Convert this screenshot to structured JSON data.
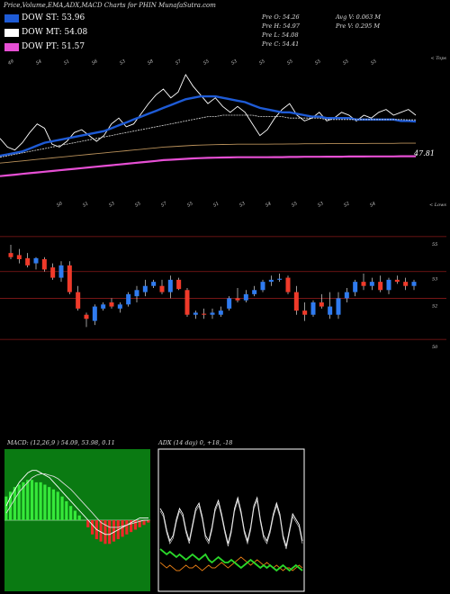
{
  "header": {
    "title": "Price,Volume,EMA,ADX,MACD Charts for PHIN  MunafaSutra.com"
  },
  "legend": [
    {
      "label": "DOW ST: 53.96",
      "color": "#1e5bd6"
    },
    {
      "label": "DOW MT: 54.08",
      "color": "#ffffff"
    },
    {
      "label": "DOW PT: 51.57",
      "color": "#e64fd4"
    }
  ],
  "info": {
    "prev_open": "Pre   O: 54.26",
    "prev_high": "Pre   H: 54.97",
    "prev_low": "Pre   L: 54.08",
    "prev_close": "Pre   C: 54.41",
    "avg_volume": "Avg V: 0.063 M",
    "prev_volume": "Pre   V: 0.295 M"
  },
  "panel1": {
    "right_label": "< Tops",
    "last_value": "47.81",
    "tops": [
      "49",
      "54",
      "51",
      "56",
      "53",
      "58",
      "57",
      "55",
      "53",
      "55",
      "55",
      "55",
      "55",
      "55"
    ],
    "lows": [
      "50",
      "51",
      "53",
      "55",
      "57",
      "55",
      "51",
      "53",
      "54",
      "55",
      "53",
      "52",
      "54"
    ]
  },
  "panel2": {
    "right_label": "< Lows"
  },
  "chart_data": [
    {
      "type": "line",
      "title": "Price,Volume,EMA,ADX,MACD Charts for PHIN",
      "series": [
        {
          "name": "Close",
          "color": "#ffffff",
          "values": [
            52.8,
            52.2,
            52.0,
            52.5,
            53.2,
            53.8,
            53.5,
            52.4,
            52.2,
            52.6,
            53.2,
            53.4,
            53.0,
            52.6,
            53.0,
            53.8,
            54.2,
            53.6,
            53.8,
            54.5,
            55.2,
            55.8,
            56.2,
            55.6,
            56.0,
            57.2,
            56.4,
            55.8,
            55.2,
            55.6,
            55.0,
            54.6,
            55.0,
            54.6,
            53.8,
            53.0,
            53.4,
            54.2,
            54.8,
            55.2,
            54.4,
            54.0,
            54.2,
            54.6,
            54.0,
            54.2,
            54.6,
            54.4,
            54.0,
            54.4,
            54.2,
            54.6,
            54.8,
            54.4,
            54.6,
            54.8,
            54.4
          ]
        },
        {
          "name": "DOW ST",
          "color": "#1e5bd6",
          "values": [
            51.6,
            51.7,
            51.8,
            51.9,
            52.1,
            52.3,
            52.5,
            52.6,
            52.7,
            52.8,
            52.9,
            53.0,
            53.1,
            53.2,
            53.3,
            53.5,
            53.7,
            53.9,
            54.1,
            54.3,
            54.5,
            54.7,
            54.9,
            55.1,
            55.3,
            55.5,
            55.6,
            55.7,
            55.7,
            55.7,
            55.6,
            55.5,
            55.4,
            55.3,
            55.1,
            54.9,
            54.8,
            54.7,
            54.6,
            54.6,
            54.5,
            54.4,
            54.3,
            54.3,
            54.2,
            54.2,
            54.2,
            54.2,
            54.1,
            54.1,
            54.1,
            54.1,
            54.1,
            54.1,
            54.0,
            54.0,
            53.96
          ]
        },
        {
          "name": "DOW MT",
          "color": "#ffffff",
          "values": [
            51.5,
            51.6,
            51.7,
            51.8,
            51.9,
            52.0,
            52.1,
            52.2,
            52.3,
            52.4,
            52.5,
            52.6,
            52.7,
            52.8,
            52.9,
            53.0,
            53.1,
            53.2,
            53.3,
            53.4,
            53.5,
            53.6,
            53.7,
            53.8,
            53.9,
            54.0,
            54.1,
            54.2,
            54.3,
            54.3,
            54.4,
            54.4,
            54.4,
            54.4,
            54.4,
            54.3,
            54.3,
            54.3,
            54.3,
            54.2,
            54.2,
            54.2,
            54.2,
            54.2,
            54.1,
            54.1,
            54.1,
            54.1,
            54.1,
            54.1,
            54.1,
            54.1,
            54.1,
            54.1,
            54.1,
            54.08,
            54.08
          ]
        },
        {
          "name": "DOW PT",
          "color": "#e64fd4",
          "values": [
            50.2,
            50.25,
            50.3,
            50.35,
            50.4,
            50.45,
            50.5,
            50.55,
            50.6,
            50.65,
            50.7,
            50.75,
            50.8,
            50.85,
            50.9,
            50.95,
            51.0,
            51.05,
            51.1,
            51.15,
            51.2,
            51.25,
            51.3,
            51.33,
            51.36,
            51.39,
            51.42,
            51.44,
            51.46,
            51.47,
            51.48,
            51.49,
            51.5,
            51.5,
            51.5,
            51.5,
            51.5,
            51.51,
            51.51,
            51.52,
            51.52,
            51.53,
            51.53,
            51.53,
            51.54,
            51.54,
            51.54,
            51.55,
            51.55,
            51.55,
            51.56,
            51.56,
            51.56,
            51.56,
            51.57,
            51.57,
            51.57
          ]
        }
      ],
      "ylim": [
        49,
        58
      ]
    },
    {
      "type": "candlestick",
      "ylim": [
        49,
        56
      ],
      "gridlines": [
        55.0,
        53.3,
        52.0,
        50.0
      ],
      "candles": [
        {
          "o": 54.2,
          "h": 54.6,
          "l": 53.9,
          "c": 54.0,
          "up": false
        },
        {
          "o": 54.1,
          "h": 54.4,
          "l": 53.7,
          "c": 53.9,
          "up": false
        },
        {
          "o": 53.95,
          "h": 54.2,
          "l": 53.5,
          "c": 53.6,
          "up": false
        },
        {
          "o": 53.7,
          "h": 54.0,
          "l": 53.4,
          "c": 53.95,
          "up": true
        },
        {
          "o": 53.9,
          "h": 54.0,
          "l": 53.3,
          "c": 53.4,
          "up": false
        },
        {
          "o": 53.5,
          "h": 53.7,
          "l": 52.9,
          "c": 53.0,
          "up": false
        },
        {
          "o": 53.0,
          "h": 53.8,
          "l": 52.8,
          "c": 53.6,
          "up": true
        },
        {
          "o": 53.6,
          "h": 53.8,
          "l": 52.2,
          "c": 52.3,
          "up": false
        },
        {
          "o": 52.3,
          "h": 52.6,
          "l": 51.4,
          "c": 51.5,
          "up": false
        },
        {
          "o": 51.2,
          "h": 51.3,
          "l": 50.6,
          "c": 51.0,
          "up": false
        },
        {
          "o": 50.9,
          "h": 51.7,
          "l": 50.7,
          "c": 51.6,
          "up": true
        },
        {
          "o": 51.5,
          "h": 51.8,
          "l": 51.4,
          "c": 51.7,
          "up": true
        },
        {
          "o": 51.8,
          "h": 52.0,
          "l": 51.5,
          "c": 51.6,
          "up": false
        },
        {
          "o": 51.5,
          "h": 51.8,
          "l": 51.3,
          "c": 51.7,
          "up": true
        },
        {
          "o": 51.7,
          "h": 52.3,
          "l": 51.6,
          "c": 52.2,
          "up": true
        },
        {
          "o": 52.1,
          "h": 52.6,
          "l": 51.8,
          "c": 52.4,
          "up": true
        },
        {
          "o": 52.3,
          "h": 52.9,
          "l": 52.1,
          "c": 52.6,
          "up": true
        },
        {
          "o": 52.6,
          "h": 52.9,
          "l": 52.5,
          "c": 52.8,
          "up": true
        },
        {
          "o": 52.6,
          "h": 52.9,
          "l": 52.2,
          "c": 52.3,
          "up": false
        },
        {
          "o": 52.3,
          "h": 53.1,
          "l": 52.0,
          "c": 52.9,
          "up": true
        },
        {
          "o": 52.9,
          "h": 53.0,
          "l": 52.4,
          "c": 52.45,
          "up": false
        },
        {
          "o": 52.4,
          "h": 52.5,
          "l": 51.1,
          "c": 51.2,
          "up": false
        },
        {
          "o": 51.2,
          "h": 51.4,
          "l": 51.0,
          "c": 51.3,
          "up": true
        },
        {
          "o": 51.2,
          "h": 51.5,
          "l": 51.0,
          "c": 51.25,
          "up": false
        },
        {
          "o": 51.2,
          "h": 51.5,
          "l": 51.0,
          "c": 51.3,
          "up": true
        },
        {
          "o": 51.2,
          "h": 51.6,
          "l": 51.1,
          "c": 51.4,
          "up": true
        },
        {
          "o": 51.5,
          "h": 52.1,
          "l": 51.4,
          "c": 52.0,
          "up": true
        },
        {
          "o": 52.0,
          "h": 52.5,
          "l": 51.8,
          "c": 51.9,
          "up": false
        },
        {
          "o": 51.9,
          "h": 52.4,
          "l": 51.8,
          "c": 52.2,
          "up": true
        },
        {
          "o": 52.2,
          "h": 52.6,
          "l": 52.1,
          "c": 52.4,
          "up": true
        },
        {
          "o": 52.4,
          "h": 52.9,
          "l": 52.3,
          "c": 52.8,
          "up": true
        },
        {
          "o": 52.8,
          "h": 53.1,
          "l": 52.6,
          "c": 52.9,
          "up": true
        },
        {
          "o": 52.9,
          "h": 53.2,
          "l": 52.8,
          "c": 52.95,
          "up": true
        },
        {
          "o": 53.0,
          "h": 53.1,
          "l": 52.2,
          "c": 52.3,
          "up": false
        },
        {
          "o": 52.3,
          "h": 52.6,
          "l": 51.2,
          "c": 51.4,
          "up": false
        },
        {
          "o": 51.4,
          "h": 51.8,
          "l": 50.9,
          "c": 51.2,
          "up": false
        },
        {
          "o": 51.2,
          "h": 51.9,
          "l": 51.1,
          "c": 51.8,
          "up": true
        },
        {
          "o": 51.8,
          "h": 52.2,
          "l": 51.5,
          "c": 51.6,
          "up": false
        },
        {
          "o": 51.6,
          "h": 52.3,
          "l": 51.0,
          "c": 51.2,
          "up": true
        },
        {
          "o": 51.2,
          "h": 52.3,
          "l": 51.0,
          "c": 52.0,
          "up": true
        },
        {
          "o": 52.0,
          "h": 52.5,
          "l": 51.8,
          "c": 52.3,
          "up": true
        },
        {
          "o": 52.3,
          "h": 52.9,
          "l": 52.1,
          "c": 52.8,
          "up": true
        },
        {
          "o": 52.8,
          "h": 53.2,
          "l": 52.4,
          "c": 52.6,
          "up": false
        },
        {
          "o": 52.6,
          "h": 53.0,
          "l": 52.4,
          "c": 52.8,
          "up": true
        },
        {
          "o": 52.8,
          "h": 53.1,
          "l": 52.3,
          "c": 52.4,
          "up": false
        },
        {
          "o": 52.4,
          "h": 53.0,
          "l": 52.2,
          "c": 52.9,
          "up": true
        },
        {
          "o": 52.9,
          "h": 53.1,
          "l": 52.7,
          "c": 52.8,
          "up": false
        },
        {
          "o": 52.8,
          "h": 53.0,
          "l": 52.4,
          "c": 52.6,
          "up": false
        },
        {
          "o": 52.6,
          "h": 52.9,
          "l": 52.4,
          "c": 52.8,
          "up": true
        }
      ]
    },
    {
      "type": "macd",
      "title": "MACD: (12,26,9 ) 54.09, 53.98, 0.11",
      "histogram": [
        1.0,
        1.2,
        1.4,
        1.5,
        1.6,
        1.7,
        1.7,
        1.6,
        1.6,
        1.5,
        1.4,
        1.3,
        1.2,
        1.0,
        0.8,
        0.6,
        0.4,
        0.2,
        0.0,
        -0.3,
        -0.6,
        -0.8,
        -0.9,
        -1.0,
        -1.0,
        -0.9,
        -0.8,
        -0.7,
        -0.6,
        -0.5,
        -0.4,
        -0.3,
        -0.2,
        -0.1
      ],
      "macd": [
        0.6,
        1.0,
        1.3,
        1.6,
        1.8,
        2.0,
        2.1,
        2.1,
        2.0,
        1.9,
        1.8,
        1.6,
        1.4,
        1.2,
        1.0,
        0.8,
        0.6,
        0.4,
        0.2,
        0.0,
        -0.2,
        -0.4,
        -0.5,
        -0.6,
        -0.6,
        -0.5,
        -0.4,
        -0.3,
        -0.2,
        -0.1,
        0.0,
        0.1,
        0.1,
        0.1
      ],
      "signal": [
        0.3,
        0.6,
        0.9,
        1.2,
        1.4,
        1.6,
        1.8,
        1.9,
        1.95,
        1.95,
        1.9,
        1.85,
        1.75,
        1.6,
        1.45,
        1.3,
        1.1,
        0.9,
        0.7,
        0.5,
        0.3,
        0.1,
        -0.1,
        -0.2,
        -0.3,
        -0.3,
        -0.3,
        -0.25,
        -0.2,
        -0.15,
        -0.1,
        -0.05,
        0.0,
        0.0
      ],
      "ylim": [
        -3,
        3
      ]
    },
    {
      "type": "adx",
      "title": "ADX                           (14  day) 0, +18, -18",
      "adx": [
        30,
        28,
        22,
        18,
        20,
        26,
        30,
        28,
        22,
        18,
        24,
        30,
        32,
        27,
        20,
        18,
        23,
        30,
        33,
        28,
        22,
        17,
        22,
        30,
        34,
        29,
        22,
        18,
        23,
        31,
        34,
        26,
        20,
        18,
        22,
        28,
        32,
        28,
        20,
        16,
        22,
        28,
        26,
        24,
        18
      ],
      "plus_di": [
        15,
        14,
        13,
        14,
        13,
        12,
        13,
        12,
        11,
        12,
        13,
        12,
        11,
        12,
        13,
        11,
        10,
        11,
        12,
        11,
        10,
        10,
        11,
        10,
        9,
        8,
        9,
        10,
        11,
        10,
        9,
        8,
        9,
        8,
        9,
        8,
        7,
        8,
        9,
        8,
        7,
        8,
        9,
        8,
        7
      ],
      "minus_di": [
        10,
        9,
        8,
        9,
        8,
        7,
        7,
        8,
        9,
        8,
        8,
        9,
        8,
        7,
        8,
        9,
        8,
        8,
        9,
        10,
        9,
        8,
        9,
        10,
        11,
        12,
        11,
        10,
        9,
        10,
        11,
        10,
        9,
        10,
        9,
        8,
        9,
        8,
        7,
        8,
        8,
        7,
        8,
        9,
        8
      ],
      "ylim": [
        0,
        50
      ]
    }
  ]
}
